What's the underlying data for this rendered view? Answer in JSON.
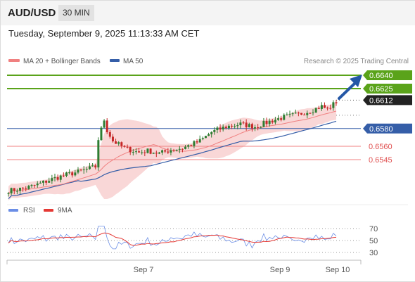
{
  "header": {
    "symbol": "AUD/USD",
    "timeframe": "30 MIN"
  },
  "date_line": "Tuesday, September 9, 2025 11:13:33 AM CET",
  "legend": {
    "ma20": "MA 20 + Bollinger Bands",
    "ma50": "MA 50",
    "credit": "Research © 2025 Trading Central",
    "rsi": "RSI",
    "rsi_ma": "9MA"
  },
  "colors": {
    "resistance": "#5aa31a",
    "support": "#f08080",
    "ma50": "#355ea8",
    "bollinger": "#f7c9c9",
    "up_candle": "#2e7d32",
    "down_candle": "#c62828",
    "current_price_bg": "#222222",
    "rsi_line": "#6b8ee6",
    "rsi_ma_line": "#e53935",
    "arrow": "#2457a6"
  },
  "price_levels": [
    {
      "value": "0.6640",
      "kind": "resistance"
    },
    {
      "value": "0.6625",
      "kind": "resistance"
    },
    {
      "value": "0.6612",
      "kind": "current"
    },
    {
      "value": "0.6580",
      "kind": "pivot"
    },
    {
      "value": "0.6560",
      "kind": "support"
    },
    {
      "value": "0.6545",
      "kind": "support"
    }
  ],
  "chart_data": {
    "type": "candlestick",
    "y_range": [
      0.6505,
      0.6648
    ],
    "x_labels": [
      "Sep 7",
      "Sep 9",
      "Sep 10"
    ],
    "close_path": [
      [
        0,
        0.651
      ],
      [
        6,
        0.6513
      ],
      [
        10,
        0.6517
      ],
      [
        15,
        0.6523
      ],
      [
        20,
        0.6528
      ],
      [
        25,
        0.6532
      ],
      [
        30,
        0.6537
      ],
      [
        31,
        0.6568
      ],
      [
        33,
        0.659
      ],
      [
        34,
        0.6578
      ],
      [
        36,
        0.6566
      ],
      [
        40,
        0.6558
      ],
      [
        45,
        0.6553
      ],
      [
        48,
        0.6555
      ],
      [
        52,
        0.6552
      ],
      [
        56,
        0.6556
      ],
      [
        60,
        0.6558
      ],
      [
        66,
        0.6566
      ],
      [
        70,
        0.6576
      ],
      [
        75,
        0.6582
      ],
      [
        80,
        0.6585
      ],
      [
        85,
        0.6582
      ],
      [
        90,
        0.6588
      ],
      [
        95,
        0.6593
      ],
      [
        100,
        0.6596
      ],
      [
        105,
        0.6601
      ],
      [
        108,
        0.6605
      ],
      [
        110,
        0.6602
      ],
      [
        113,
        0.661
      ]
    ],
    "rsi_axis": [
      30,
      50,
      70
    ]
  }
}
